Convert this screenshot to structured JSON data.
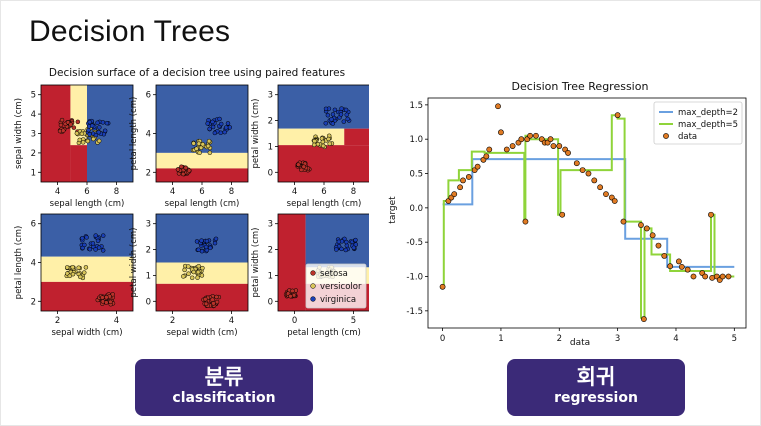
{
  "slide": {
    "title": "Decision Trees",
    "left_button": {
      "label_ko": "분류",
      "label_en": "classification"
    },
    "right_button": {
      "label_ko": "회귀",
      "label_en": "regression"
    }
  },
  "colors": {
    "setosa_region": "#c0212f",
    "versicolor_region": "#fff0a8",
    "virginica_region": "#3b5fa6",
    "setosa_point": "#b8322a",
    "versicolor_point": "#d8c55a",
    "virginica_point": "#1a3fb5",
    "depth2_line": "#6aa0e0",
    "depth5_line": "#8fd43a",
    "data_point": "#e07b24"
  },
  "classification_figure": {
    "title": "Decision surface of a decision tree using paired features",
    "legend": [
      "setosa",
      "versicolor",
      "virginica"
    ],
    "panels": [
      {
        "xlabel": "sepal length (cm)",
        "ylabel": "sepal width (cm)",
        "xticks": [
          "4",
          "6",
          "8"
        ],
        "yticks": [
          "1",
          "2",
          "3",
          "4",
          "5"
        ]
      },
      {
        "xlabel": "sepal length (cm)",
        "ylabel": "petal length (cm)",
        "xticks": [
          "4",
          "6",
          "8"
        ],
        "yticks": [
          "2",
          "4",
          "6"
        ]
      },
      {
        "xlabel": "sepal length (cm)",
        "ylabel": "petal width (cm)",
        "xticks": [
          "4",
          "6",
          "8"
        ],
        "yticks": [
          "0",
          "1",
          "2",
          "3"
        ]
      },
      {
        "xlabel": "sepal width (cm)",
        "ylabel": "petal length (cm)",
        "xticks": [
          "2",
          "4"
        ],
        "yticks": [
          "2",
          "4",
          "6"
        ]
      },
      {
        "xlabel": "sepal width (cm)",
        "ylabel": "petal width (cm)",
        "xticks": [
          "2",
          "4"
        ],
        "yticks": [
          "0",
          "1",
          "2",
          "3"
        ]
      },
      {
        "xlabel": "petal length (cm)",
        "ylabel": "petal width (cm)",
        "xticks": [
          "0",
          "5"
        ],
        "yticks": [
          "0",
          "1",
          "2",
          "3"
        ]
      }
    ]
  },
  "chart_data": {
    "type": "scatter",
    "title": "Decision Tree Regression",
    "xlabel": "data",
    "ylabel": "target",
    "xlim": [
      -0.25,
      5.2
    ],
    "ylim": [
      -1.75,
      1.6
    ],
    "xticks": [
      0,
      1,
      2,
      3,
      4,
      5
    ],
    "yticks": [
      -1.5,
      -1.0,
      -0.5,
      0.0,
      0.5,
      1.0,
      1.5
    ],
    "legend_position": "top-right",
    "series": [
      {
        "name": "max_depth=2",
        "kind": "step",
        "x": [
          0,
          0.51,
          0.51,
          3.13,
          3.13,
          3.85,
          3.85,
          5.0
        ],
        "y": [
          0.05,
          0.05,
          0.71,
          0.71,
          -0.45,
          -0.45,
          -0.86,
          -0.86
        ]
      },
      {
        "name": "max_depth=5",
        "kind": "step",
        "x": [
          0,
          0.02,
          0.02,
          0.1,
          0.1,
          0.28,
          0.28,
          0.5,
          0.5,
          0.72,
          0.72,
          1.4,
          1.4,
          1.42,
          1.42,
          1.5,
          1.5,
          1.98,
          1.98,
          2.02,
          2.02,
          2.9,
          2.9,
          3.0,
          3.0,
          3.12,
          3.12,
          3.4,
          3.4,
          3.46,
          3.46,
          3.58,
          3.58,
          3.9,
          3.9,
          4.6,
          4.6,
          4.66,
          4.66,
          5.0
        ],
        "y": [
          -1.15,
          -1.15,
          0.1,
          0.1,
          0.4,
          0.4,
          0.55,
          0.55,
          0.82,
          0.82,
          0.8,
          0.8,
          -0.2,
          -0.2,
          1.05,
          1.05,
          1.0,
          1.0,
          -0.1,
          -0.1,
          0.55,
          0.55,
          1.35,
          1.35,
          1.3,
          1.3,
          -0.2,
          -0.2,
          -1.6,
          -1.6,
          -0.3,
          -0.3,
          -0.68,
          -0.68,
          -0.92,
          -0.92,
          -0.1,
          -0.1,
          -1.0,
          -1.0
        ]
      },
      {
        "name": "data",
        "kind": "points",
        "x": [
          0.0,
          0.1,
          0.15,
          0.2,
          0.3,
          0.35,
          0.45,
          0.55,
          0.6,
          0.7,
          0.75,
          0.8,
          0.95,
          1.0,
          1.1,
          1.2,
          1.3,
          1.35,
          1.42,
          1.45,
          1.5,
          1.6,
          1.7,
          1.75,
          1.8,
          1.85,
          1.9,
          2.0,
          2.05,
          2.1,
          2.15,
          2.3,
          2.4,
          2.5,
          2.6,
          2.7,
          2.8,
          2.9,
          2.95,
          3.0,
          3.1,
          3.4,
          3.45,
          3.5,
          3.6,
          3.7,
          3.8,
          3.9,
          4.05,
          4.1,
          4.2,
          4.3,
          4.45,
          4.5,
          4.6,
          4.62,
          4.7,
          4.75,
          4.8,
          4.9
        ],
        "y": [
          -1.15,
          0.1,
          0.15,
          0.2,
          0.3,
          0.4,
          0.45,
          0.55,
          0.6,
          0.7,
          0.75,
          0.85,
          1.48,
          1.1,
          0.85,
          0.9,
          0.95,
          1.0,
          -0.2,
          1.0,
          1.05,
          1.05,
          1.0,
          0.95,
          0.95,
          1.0,
          0.9,
          0.9,
          -0.1,
          0.85,
          0.8,
          0.65,
          0.55,
          0.5,
          0.4,
          0.3,
          0.2,
          0.15,
          0.1,
          1.35,
          -0.2,
          -0.25,
          -1.62,
          -0.3,
          -0.4,
          -0.55,
          -0.7,
          -0.85,
          -0.78,
          -0.86,
          -0.9,
          -1.0,
          -0.95,
          -1.0,
          -0.1,
          -1.02,
          -1.0,
          -1.05,
          -1.0,
          -1.0
        ]
      }
    ]
  }
}
